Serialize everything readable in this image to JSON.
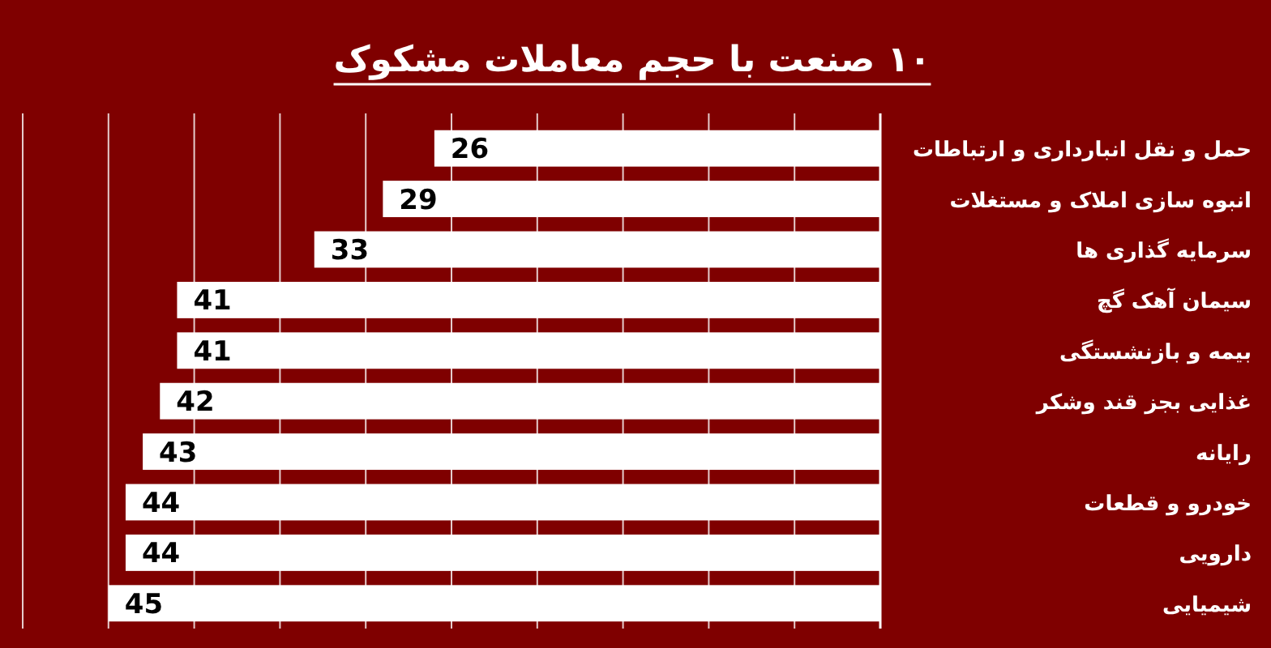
{
  "chart_data": {
    "type": "bar",
    "orientation": "horizontal",
    "title": "۱۰ صنعت با حجم معاملات مشکوک",
    "categories": [
      "حمل و نقل انبارداری و ارتباطات",
      "انبوه سازی املاک و مستغلات",
      "سرمایه گذاری ها",
      "سیمان آهک گچ",
      "بیمه و بازنشستگی",
      "غذایی بجز قند وشکر",
      "رایانه",
      "خودرو و قطعات",
      "دارویی",
      "شیمیایی"
    ],
    "values": [
      26,
      29,
      33,
      41,
      41,
      42,
      43,
      44,
      44,
      45
    ],
    "color": "#ffffff",
    "xlim": [
      50,
      0
    ],
    "xticks": [
      {
        "value": 0,
        "label": null
      },
      {
        "value": 5,
        "label": null
      },
      {
        "value": 10,
        "label": null
      },
      {
        "value": 15,
        "label": null
      },
      {
        "value": 20,
        "label": null
      },
      {
        "value": 25,
        "label": null
      },
      {
        "value": 30,
        "label": null
      },
      {
        "value": 35,
        "label": null
      },
      {
        "value": 40,
        "label": null
      },
      {
        "value": 45,
        "label": null
      },
      {
        "value": 50,
        "label": null
      }
    ],
    "grid": "x",
    "tick_labels": "y",
    "data_labels": true
  }
}
